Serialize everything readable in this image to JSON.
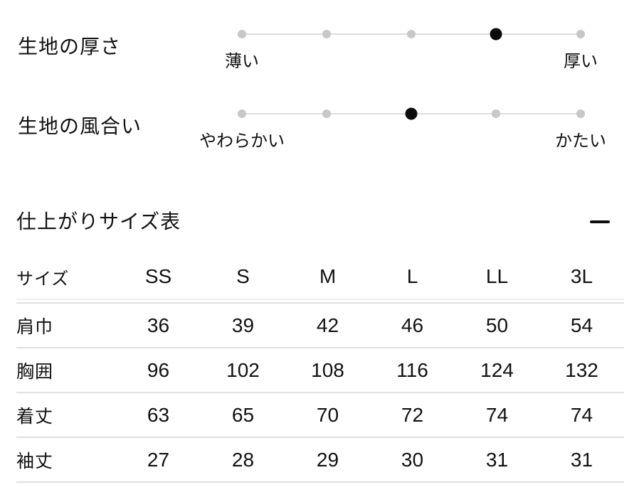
{
  "fabric_specs": [
    {
      "label": "生地の厚さ",
      "min_label": "薄い",
      "max_label": "厚い",
      "scale_max": 5,
      "level": 4
    },
    {
      "label": "生地の風合い",
      "min_label": "やわらかい",
      "max_label": "かたい",
      "scale_max": 5,
      "level": 3
    }
  ],
  "size_section": {
    "title": "仕上がりサイズ表",
    "collapse_icon": "minus-icon",
    "expanded": true
  },
  "size_table": {
    "header": [
      "サイズ",
      "SS",
      "S",
      "M",
      "L",
      "LL",
      "3L"
    ],
    "rows": [
      {
        "label": "肩巾",
        "values": [
          "36",
          "39",
          "42",
          "46",
          "50",
          "54"
        ]
      },
      {
        "label": "胸囲",
        "values": [
          "96",
          "102",
          "108",
          "116",
          "124",
          "132"
        ]
      },
      {
        "label": "着丈",
        "values": [
          "63",
          "65",
          "70",
          "72",
          "74",
          "74"
        ]
      },
      {
        "label": "袖丈",
        "values": [
          "27",
          "28",
          "29",
          "30",
          "31",
          "31"
        ]
      }
    ]
  },
  "colors": {
    "background": "#ffffff",
    "text": "#111111",
    "dot_inactive": "#c7c7c7",
    "dot_active": "#0b0b0b",
    "scale_track": "#dcdcdc",
    "divider": "#e0e0e0",
    "divider_light": "#eeeeee"
  }
}
